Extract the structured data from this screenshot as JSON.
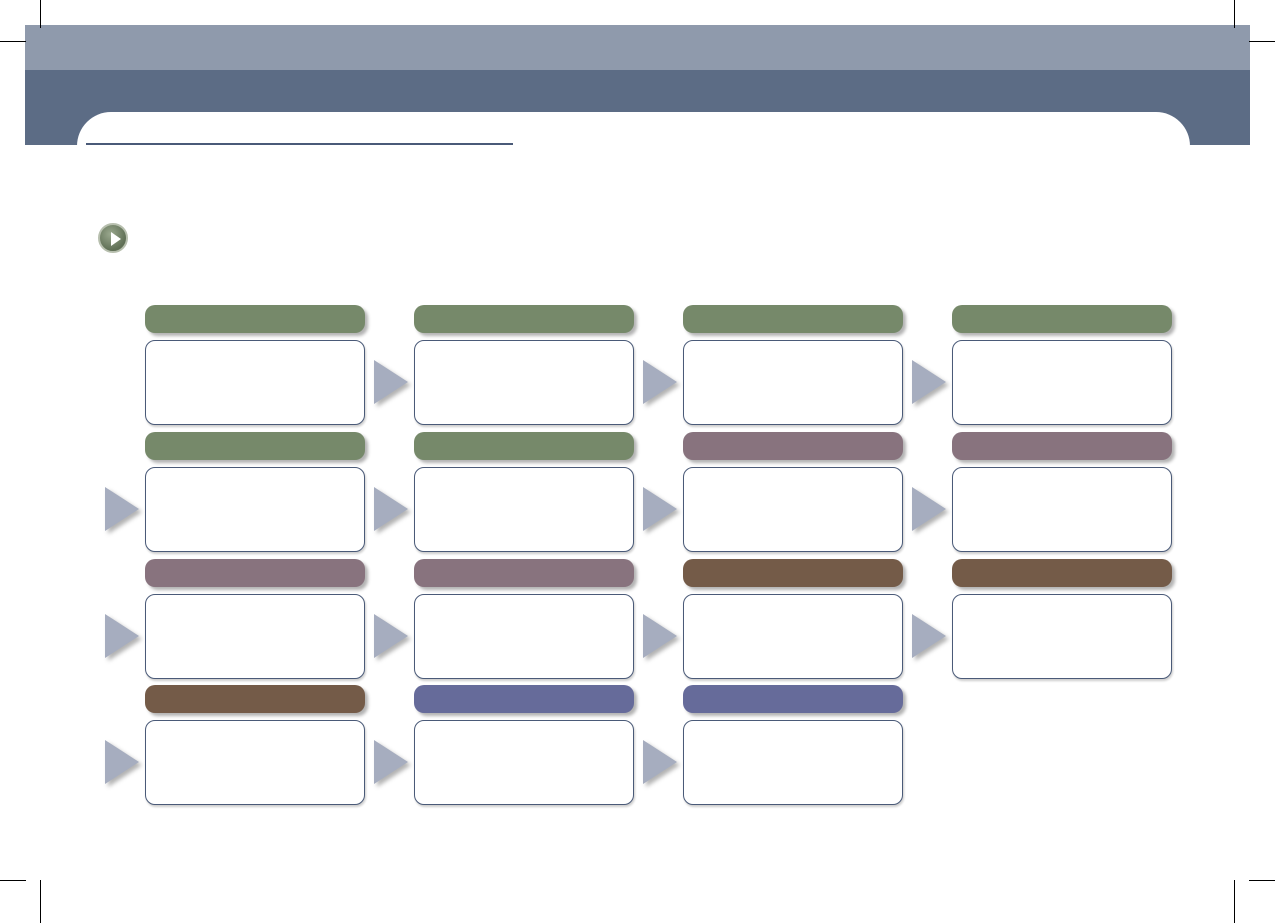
{
  "colors": {
    "band_light": "#8f9aac",
    "band_dark": "#5c6c85",
    "arrow": "#a6adbf",
    "box_border": "#4a5a78"
  },
  "icons": {
    "bullet": "play-circle-icon",
    "connector": "triangle-arrow-icon"
  },
  "grid": [
    [
      "#76896a",
      "#76896a",
      "#76896a",
      "#76896a"
    ],
    [
      "#76896a",
      "#76896a",
      "#88737e",
      "#88737e"
    ],
    [
      "#88737e",
      "#88737e",
      "#745b48",
      "#745b48"
    ],
    [
      "#745b48",
      "#666b9a",
      "#666b9a"
    ]
  ]
}
